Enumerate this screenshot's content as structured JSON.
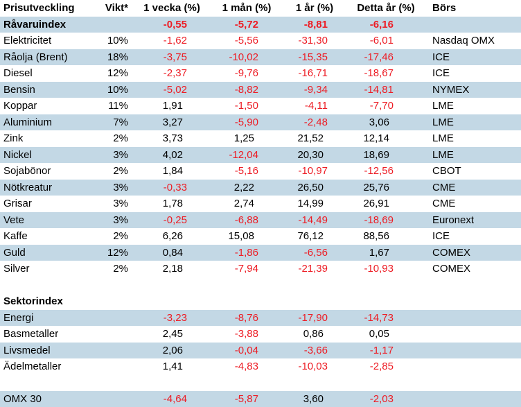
{
  "title": "Prisutveckling",
  "colors": {
    "row_band": "#c3d8e5",
    "negative": "#ed1c24",
    "text": "#000000",
    "background": "#ffffff"
  },
  "table": {
    "columns": [
      {
        "key": "label",
        "label": "Prisutveckling"
      },
      {
        "key": "vikt",
        "label": "Vikt*"
      },
      {
        "key": "vecka",
        "label": "1 vecka (%)"
      },
      {
        "key": "man",
        "label": "1 mån (%)"
      },
      {
        "key": "ar",
        "label": "1 år (%)"
      },
      {
        "key": "detta",
        "label": "Detta år (%)"
      },
      {
        "key": "bors",
        "label": "Börs"
      }
    ],
    "numeric_keys": [
      "vecka",
      "man",
      "ar",
      "detta"
    ],
    "rows": [
      {
        "type": "item",
        "shade": true,
        "bold": true,
        "label": "Råvaruindex",
        "vikt": "",
        "vecka": "-0,55",
        "man": "-5,72",
        "ar": "-8,81",
        "detta": "-6,16",
        "bors": ""
      },
      {
        "type": "item",
        "shade": false,
        "bold": false,
        "label": "Elektricitet",
        "vikt": "10%",
        "vecka": "-1,62",
        "man": "-5,56",
        "ar": "-31,30",
        "detta": "-6,01",
        "bors": "Nasdaq OMX"
      },
      {
        "type": "item",
        "shade": true,
        "bold": false,
        "label": "Råolja (Brent)",
        "vikt": "18%",
        "vecka": "-3,75",
        "man": "-10,02",
        "ar": "-15,35",
        "detta": "-17,46",
        "bors": "ICE"
      },
      {
        "type": "item",
        "shade": false,
        "bold": false,
        "label": "Diesel",
        "vikt": "12%",
        "vecka": "-2,37",
        "man": "-9,76",
        "ar": "-16,71",
        "detta": "-18,67",
        "bors": "ICE"
      },
      {
        "type": "item",
        "shade": true,
        "bold": false,
        "label": "Bensin",
        "vikt": "10%",
        "vecka": "-5,02",
        "man": "-8,82",
        "ar": "-9,34",
        "detta": "-14,81",
        "bors": "NYMEX"
      },
      {
        "type": "item",
        "shade": false,
        "bold": false,
        "label": "Koppar",
        "vikt": "11%",
        "vecka": "1,91",
        "man": "-1,50",
        "ar": "-4,11",
        "detta": "-7,70",
        "bors": "LME"
      },
      {
        "type": "item",
        "shade": true,
        "bold": false,
        "label": "Aluminium",
        "vikt": "7%",
        "vecka": "3,27",
        "man": "-5,90",
        "ar": "-2,48",
        "detta": "3,06",
        "bors": "LME"
      },
      {
        "type": "item",
        "shade": false,
        "bold": false,
        "label": "Zink",
        "vikt": "2%",
        "vecka": "3,73",
        "man": "1,25",
        "ar": "21,52",
        "detta": "12,14",
        "bors": "LME"
      },
      {
        "type": "item",
        "shade": true,
        "bold": false,
        "label": "Nickel",
        "vikt": "3%",
        "vecka": "4,02",
        "man": "-12,04",
        "ar": "20,30",
        "detta": "18,69",
        "bors": "LME"
      },
      {
        "type": "item",
        "shade": false,
        "bold": false,
        "label": "Sojabönor",
        "vikt": "2%",
        "vecka": "1,84",
        "man": "-5,16",
        "ar": "-10,97",
        "detta": "-12,56",
        "bors": "CBOT"
      },
      {
        "type": "item",
        "shade": true,
        "bold": false,
        "label": "Nötkreatur",
        "vikt": "3%",
        "vecka": "-0,33",
        "man": "2,22",
        "ar": "26,50",
        "detta": "25,76",
        "bors": "CME"
      },
      {
        "type": "item",
        "shade": false,
        "bold": false,
        "label": "Grisar",
        "vikt": "3%",
        "vecka": "1,78",
        "man": "2,74",
        "ar": "14,99",
        "detta": "26,91",
        "bors": "CME"
      },
      {
        "type": "item",
        "shade": true,
        "bold": false,
        "label": "Vete",
        "vikt": "3%",
        "vecka": "-0,25",
        "man": "-6,88",
        "ar": "-14,49",
        "detta": "-18,69",
        "bors": "Euronext"
      },
      {
        "type": "item",
        "shade": false,
        "bold": false,
        "label": "Kaffe",
        "vikt": "2%",
        "vecka": "6,26",
        "man": "15,08",
        "ar": "76,12",
        "detta": "88,56",
        "bors": "ICE"
      },
      {
        "type": "item",
        "shade": true,
        "bold": false,
        "label": "Guld",
        "vikt": "12%",
        "vecka": "0,84",
        "man": "-1,86",
        "ar": "-6,56",
        "detta": "1,67",
        "bors": "COMEX"
      },
      {
        "type": "item",
        "shade": false,
        "bold": false,
        "label": "Silver",
        "vikt": "2%",
        "vecka": "2,18",
        "man": "-7,94",
        "ar": "-21,39",
        "detta": "-10,93",
        "bors": "COMEX"
      },
      {
        "type": "blank"
      },
      {
        "type": "section",
        "shade": false,
        "label": "Sektorindex"
      },
      {
        "type": "item",
        "shade": true,
        "bold": false,
        "label": "Energi",
        "vikt": "",
        "vecka": "-3,23",
        "man": "-8,76",
        "ar": "-17,90",
        "detta": "-14,73",
        "bors": ""
      },
      {
        "type": "item",
        "shade": false,
        "bold": false,
        "label": "Basmetaller",
        "vikt": "",
        "vecka": "2,45",
        "man": "-3,88",
        "ar": "0,86",
        "detta": "0,05",
        "bors": ""
      },
      {
        "type": "item",
        "shade": true,
        "bold": false,
        "label": "Livsmedel",
        "vikt": "",
        "vecka": "2,06",
        "man": "-0,04",
        "ar": "-3,66",
        "detta": "-1,17",
        "bors": ""
      },
      {
        "type": "item",
        "shade": false,
        "bold": false,
        "label": "Ädelmetaller",
        "vikt": "",
        "vecka": "1,41",
        "man": "-4,83",
        "ar": "-10,03",
        "detta": "-2,85",
        "bors": ""
      },
      {
        "type": "blank"
      },
      {
        "type": "item",
        "shade": true,
        "bold": false,
        "label": "OMX 30",
        "vikt": "",
        "vecka": "-4,64",
        "man": "-5,87",
        "ar": "3,60",
        "detta": "-2,03",
        "bors": ""
      }
    ]
  }
}
